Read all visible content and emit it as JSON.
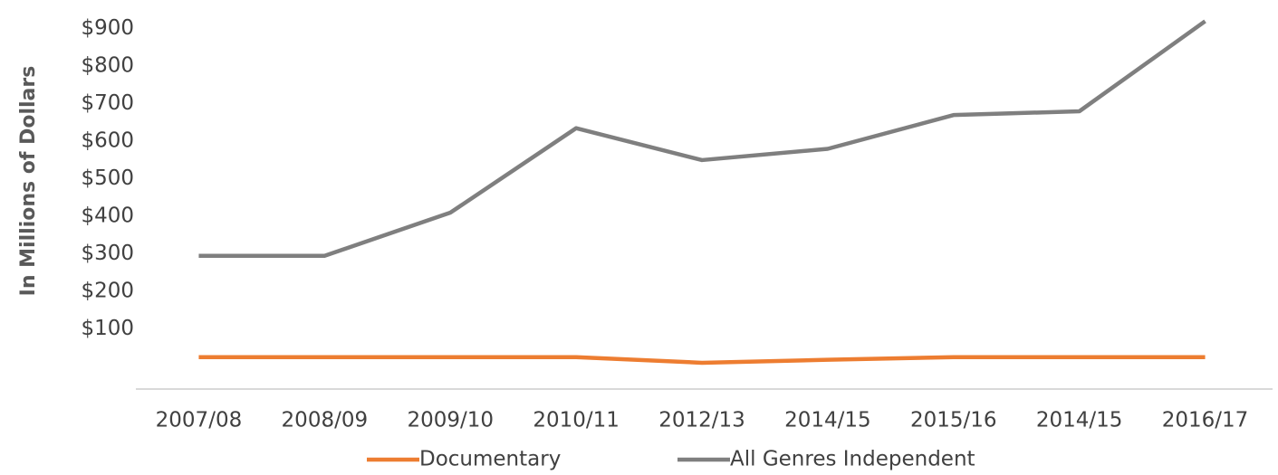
{
  "chart_data": {
    "type": "line",
    "y_axis_label": "In Millions of Dollars",
    "categories": [
      "2007/08",
      "2008/09",
      "2009/10",
      "2010/11",
      "2012/13",
      "2014/15",
      "2015/16",
      "2014/15",
      "2016/17"
    ],
    "series": [
      {
        "name": "Documentary",
        "color": "#ED7D31",
        "values": [
          25,
          25,
          25,
          25,
          10,
          18,
          25,
          25,
          25
        ]
      },
      {
        "name": "All Genres Independent",
        "color": "#7F7F7F",
        "values": [
          295,
          295,
          410,
          635,
          550,
          580,
          670,
          680,
          920
        ]
      }
    ],
    "ylim": [
      -60,
      950
    ],
    "yticks": [
      {
        "value": 100,
        "label": "$100"
      },
      {
        "value": 200,
        "label": "$200"
      },
      {
        "value": 300,
        "label": "$300"
      },
      {
        "value": 400,
        "label": "$400"
      },
      {
        "value": 500,
        "label": "$500"
      },
      {
        "value": 600,
        "label": "$600"
      },
      {
        "value": 700,
        "label": "$700"
      },
      {
        "value": 800,
        "label": "$800"
      },
      {
        "value": 900,
        "label": "$900"
      }
    ],
    "grid": false,
    "legend": "bottom"
  }
}
